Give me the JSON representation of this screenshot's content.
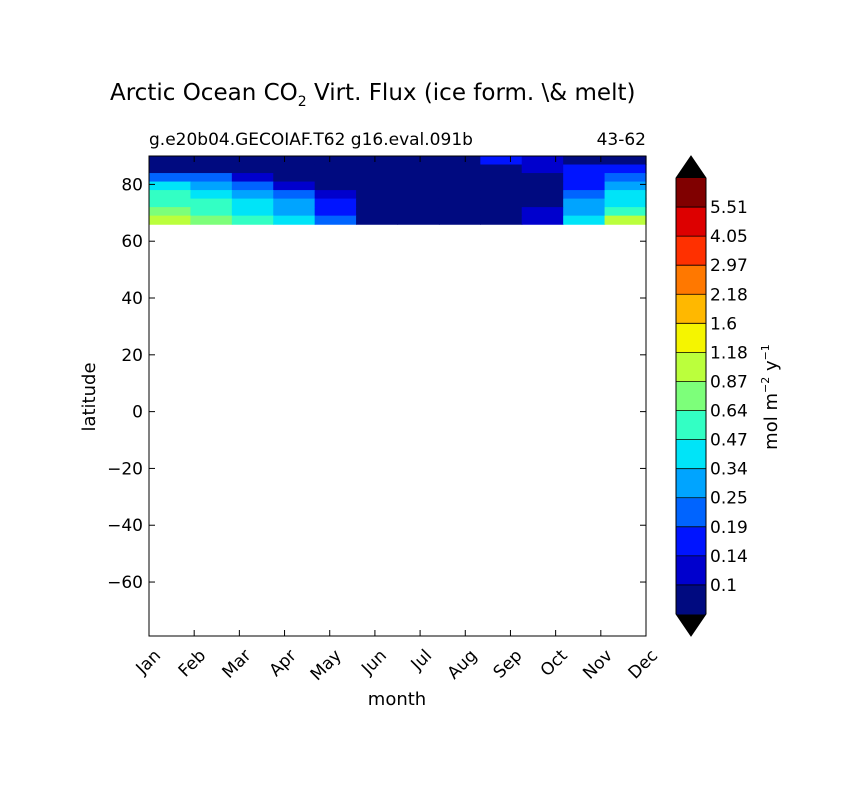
{
  "chart_data": {
    "type": "heatmap",
    "title_main": "Arctic Ocean CO",
    "title_sub": "2",
    "title_rest": " Virt. Flux (ice form. \\& melt)",
    "subtitle_left": "g.e20b04.GECOIAF.T62 g16.eval.091b",
    "subtitle_right": "43-62",
    "xlabel": "month",
    "ylabel": "latitude",
    "x_ticks": [
      "Jan",
      "Feb",
      "Mar",
      "Apr",
      "May",
      "Jun",
      "Jul",
      "Aug",
      "Sep",
      "Oct",
      "Nov",
      "Dec"
    ],
    "y_ticks": [
      80,
      60,
      40,
      20,
      0,
      -20,
      -40,
      -60
    ],
    "y_tick_labels": [
      "80",
      "60",
      "40",
      "20",
      "0",
      "−20",
      "−40",
      "−60"
    ],
    "ylim": [
      -79,
      90
    ],
    "data_lat_range": [
      66,
      90
    ],
    "grid": false,
    "latitudes": [
      89,
      85,
      81,
      78,
      75,
      72,
      69,
      67
    ],
    "values": [
      [
        0.03,
        0.03,
        0.03,
        0.03,
        0.03,
        0.03,
        0.03,
        0.03,
        0.14,
        0.12,
        0.06,
        0.05
      ],
      [
        0.05,
        0.04,
        0.03,
        0.03,
        0.03,
        0.03,
        0.03,
        0.03,
        0.06,
        0.12,
        0.16,
        0.17
      ],
      [
        0.24,
        0.2,
        0.12,
        0.06,
        0.04,
        0.03,
        0.03,
        0.03,
        0.04,
        0.08,
        0.14,
        0.2
      ],
      [
        0.4,
        0.3,
        0.19,
        0.12,
        0.06,
        0.03,
        0.03,
        0.03,
        0.04,
        0.07,
        0.14,
        0.26
      ],
      [
        0.55,
        0.44,
        0.3,
        0.2,
        0.1,
        0.04,
        0.03,
        0.03,
        0.04,
        0.08,
        0.2,
        0.35
      ],
      [
        0.62,
        0.52,
        0.42,
        0.3,
        0.15,
        0.05,
        0.03,
        0.03,
        0.04,
        0.09,
        0.26,
        0.45
      ],
      [
        0.75,
        0.6,
        0.45,
        0.32,
        0.18,
        0.05,
        0.03,
        0.03,
        0.05,
        0.1,
        0.3,
        0.55
      ],
      [
        0.95,
        0.75,
        0.5,
        0.35,
        0.2,
        0.06,
        0.03,
        0.03,
        0.05,
        0.12,
        0.35,
        0.9
      ]
    ],
    "colorbar": {
      "label": "mol m",
      "label_sup1": "−2",
      "label_mid": " y",
      "label_sup2": "−1",
      "levels": [
        0.1,
        0.14,
        0.19,
        0.25,
        0.34,
        0.47,
        0.64,
        0.87,
        1.18,
        1.6,
        2.18,
        2.97,
        4.05,
        5.51
      ],
      "tick_labels": [
        "0.1",
        "0.14",
        "0.19",
        "0.25",
        "0.34",
        "0.47",
        "0.64",
        "0.87",
        "1.18",
        "1.6",
        "2.18",
        "2.97",
        "4.05",
        "5.51"
      ],
      "colors": [
        "#000a80",
        "#0000cd",
        "#0014ff",
        "#0064ff",
        "#00a4ff",
        "#00e4f8",
        "#33ffc4",
        "#7dff7a",
        "#bbff3c",
        "#f5f500",
        "#ffb800",
        "#ff7800",
        "#ff3000",
        "#dd0000",
        "#800000"
      ],
      "extend_low_color": "#000000",
      "extend_high_color": "#000000"
    }
  }
}
